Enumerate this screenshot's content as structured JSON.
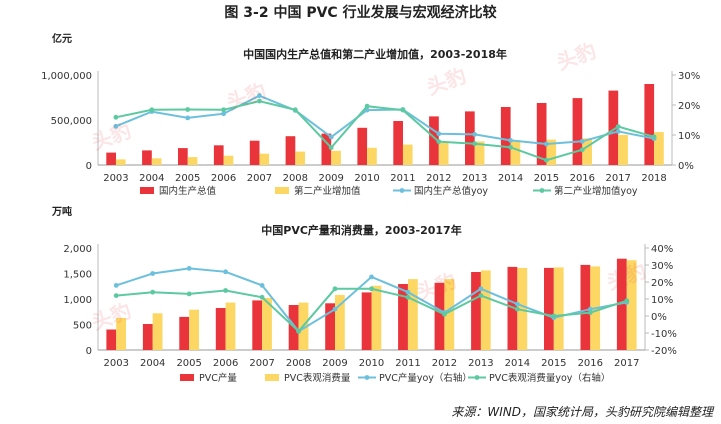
{
  "figure_title": "图 3-2 中国 PVC 行业发展与宏观经济比较",
  "source": "来源：WIND，国家统计局，头豹研究院编辑整理",
  "watermark": "头豹",
  "colors": {
    "bar1": "#e8343a",
    "bar2": "#fdd764",
    "line1": "#6cc0dc",
    "line2": "#5cc9a0"
  },
  "chart_data": [
    {
      "type": "bar+line",
      "title": "中国国内生产总值和第二产业增加值，2003-2018年",
      "unit_label": "亿元",
      "categories": [
        "2003",
        "2004",
        "2005",
        "2006",
        "2007",
        "2008",
        "2009",
        "2010",
        "2011",
        "2012",
        "2013",
        "2014",
        "2015",
        "2016",
        "2017",
        "2018"
      ],
      "ylim": [
        0,
        1000000
      ],
      "yticks": [
        0,
        500000,
        1000000
      ],
      "ytick_labels": [
        "0",
        "500,000",
        "1,000,000"
      ],
      "y2lim": [
        0,
        30
      ],
      "y2ticks": [
        0,
        10,
        20,
        30
      ],
      "y2tick_labels": [
        "0%",
        "10%",
        "20%",
        "30%"
      ],
      "bar_series": [
        {
          "name": "国内生产总值",
          "values": [
            137422,
            161840,
            187319,
            219439,
            270232,
            319516,
            349081,
            413030,
            489301,
            540367,
            595244,
            643974,
            689052,
            743586,
            827122,
            900309
          ]
        },
        {
          "name": "第二产业增加值",
          "values": [
            62436,
            73904,
            87598,
            103720,
            125831,
            149003,
            157639,
            191630,
            227038,
            244643,
            261956,
            277572,
            282040,
            296548,
            334623,
            366001
          ]
        }
      ],
      "line_series": [
        {
          "name": "国内生产总值yoy",
          "values": [
            12.9,
            17.8,
            15.7,
            17.1,
            23.1,
            18.2,
            9.3,
            18.3,
            18.5,
            10.4,
            10.2,
            8.2,
            7.0,
            7.9,
            11.2,
            8.8
          ]
        },
        {
          "name": "第二产业增加值yoy",
          "values": [
            15.9,
            18.4,
            18.5,
            18.4,
            21.3,
            18.4,
            5.8,
            19.6,
            18.3,
            7.8,
            7.1,
            5.9,
            1.6,
            5.1,
            12.8,
            9.4
          ]
        }
      ]
    },
    {
      "type": "bar+line",
      "title": "中国PVC产量和消费量，2003-2017年",
      "unit_label": "万吨",
      "categories": [
        "2003",
        "2004",
        "2005",
        "2006",
        "2007",
        "2008",
        "2009",
        "2010",
        "2011",
        "2012",
        "2013",
        "2014",
        "2015",
        "2016",
        "2017"
      ],
      "ylim": [
        0,
        2000
      ],
      "yticks": [
        0,
        500,
        1000,
        1500,
        2000
      ],
      "ytick_labels": [
        "0",
        "500",
        "1,000",
        "1,500",
        "2,000"
      ],
      "y2lim": [
        -20,
        40
      ],
      "y2ticks": [
        -20,
        -10,
        0,
        10,
        20,
        30,
        40
      ],
      "y2tick_labels": [
        "-20%",
        "-10%",
        "0%",
        "10%",
        "20%",
        "30%",
        "40%"
      ],
      "bar_series": [
        {
          "name": "PVC产量",
          "values": [
            401,
            509,
            649,
            824,
            972,
            882,
            916,
            1130,
            1295,
            1318,
            1530,
            1630,
            1609,
            1669,
            1790
          ]
        },
        {
          "name": "PVC表观消费量",
          "values": [
            630,
            720,
            790,
            930,
            1020,
            930,
            1080,
            1260,
            1390,
            1390,
            1560,
            1610,
            1620,
            1640,
            1760
          ]
        }
      ],
      "line_series": [
        {
          "name": "PVC产量yoy（右轴）",
          "values": [
            18,
            25,
            28,
            26,
            18,
            -9,
            4,
            23,
            14,
            2,
            16,
            7,
            -1,
            4,
            8
          ]
        },
        {
          "name": "PVC表观消费量yoy（右轴）",
          "values": [
            12,
            14,
            13,
            15,
            11,
            -9,
            16,
            16,
            11,
            1,
            12,
            4,
            0,
            2,
            9
          ]
        }
      ]
    }
  ]
}
